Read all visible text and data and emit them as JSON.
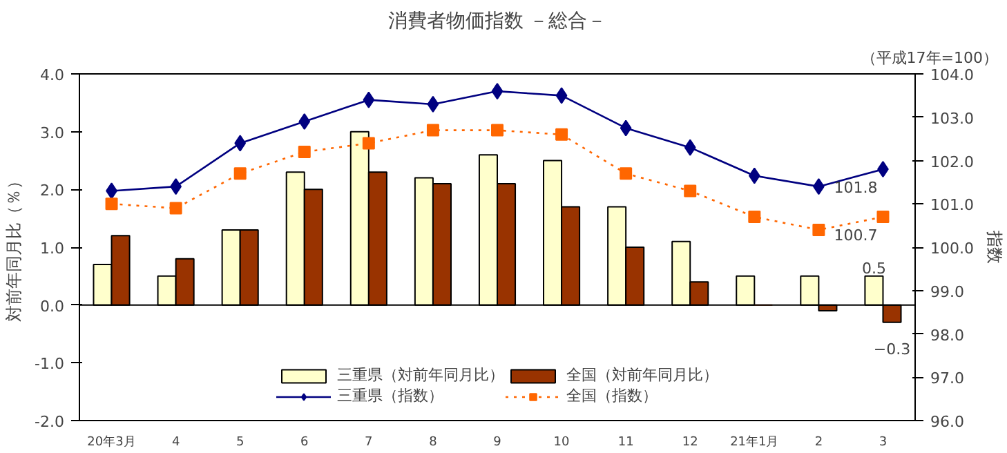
{
  "chart_data": {
    "type": "bar",
    "title": "消費者物価指数 －総合－",
    "subtitle": "（平成17年=100）",
    "ylabel": "対前年同月比（％）",
    "y2label": "指数",
    "categories": [
      "20年3月",
      "4",
      "5",
      "6",
      "7",
      "8",
      "9",
      "10",
      "11",
      "12",
      "21年1月",
      "2",
      "3"
    ],
    "series": [
      {
        "name": "三重県（対前年同月比）",
        "color": "#ffffcc",
        "values": [
          0.7,
          0.5,
          1.3,
          2.3,
          3.0,
          2.2,
          2.6,
          2.5,
          1.7,
          1.1,
          0.5,
          0.5,
          0.5
        ],
        "value_labels": [
          null,
          null,
          null,
          null,
          null,
          null,
          null,
          null,
          null,
          null,
          null,
          null,
          "0.5"
        ]
      },
      {
        "name": "全国（対前年同月比）",
        "color": "#993300",
        "values": [
          1.2,
          0.8,
          1.3,
          2.0,
          2.3,
          2.1,
          2.1,
          1.7,
          1.0,
          0.4,
          0.0,
          -0.1,
          -0.3
        ],
        "value_labels": [
          null,
          null,
          null,
          null,
          null,
          null,
          null,
          null,
          null,
          null,
          null,
          null,
          "−0.3"
        ]
      },
      {
        "name": "三重県（指数）",
        "type": "line",
        "axis": "y2",
        "color": "#000080",
        "marker": "diamond",
        "line_style": "solid",
        "values": [
          101.3,
          101.4,
          102.4,
          102.9,
          103.4,
          103.3,
          103.6,
          103.5,
          102.75,
          102.3,
          101.65,
          101.4,
          101.8
        ],
        "value_labels": [
          null,
          null,
          null,
          null,
          null,
          null,
          null,
          null,
          null,
          null,
          null,
          null,
          "101.8"
        ]
      },
      {
        "name": "全国（指数）",
        "type": "line",
        "axis": "y2",
        "color": "#ff6600",
        "marker": "square",
        "line_style": "dotted",
        "values": [
          101.0,
          100.9,
          101.7,
          102.2,
          102.4,
          102.7,
          102.7,
          102.6,
          101.7,
          101.3,
          100.7,
          100.4,
          100.7
        ],
        "value_labels": [
          null,
          null,
          null,
          null,
          null,
          null,
          null,
          null,
          null,
          null,
          null,
          null,
          "100.7"
        ]
      }
    ],
    "ylim": [
      -2.0,
      4.0
    ],
    "yticks": [
      {
        "value": -2,
        "label": "-2.0"
      },
      {
        "value": -1,
        "label": "-1.0"
      },
      {
        "value": 0,
        "label": "0.0"
      },
      {
        "value": 1,
        "label": "1.0"
      },
      {
        "value": 2,
        "label": "2.0"
      },
      {
        "value": 3,
        "label": "3.0"
      },
      {
        "value": 4,
        "label": "4.0"
      }
    ],
    "y2lim": [
      96.0,
      104.0
    ],
    "y2ticks": [
      {
        "value": 96,
        "label": "96.0"
      },
      {
        "value": 97,
        "label": "97.0"
      },
      {
        "value": 98,
        "label": "98.0"
      },
      {
        "value": 99,
        "label": "99.0"
      },
      {
        "value": 100,
        "label": "100.0"
      },
      {
        "value": 101,
        "label": "101.0"
      },
      {
        "value": 102,
        "label": "102.0"
      },
      {
        "value": 103,
        "label": "103.0"
      },
      {
        "value": 104,
        "label": "104.0"
      }
    ],
    "ref_lines": [
      {
        "axis": "y",
        "value": 0,
        "color": "#000000"
      }
    ],
    "grid": false,
    "legend": "bottom"
  }
}
